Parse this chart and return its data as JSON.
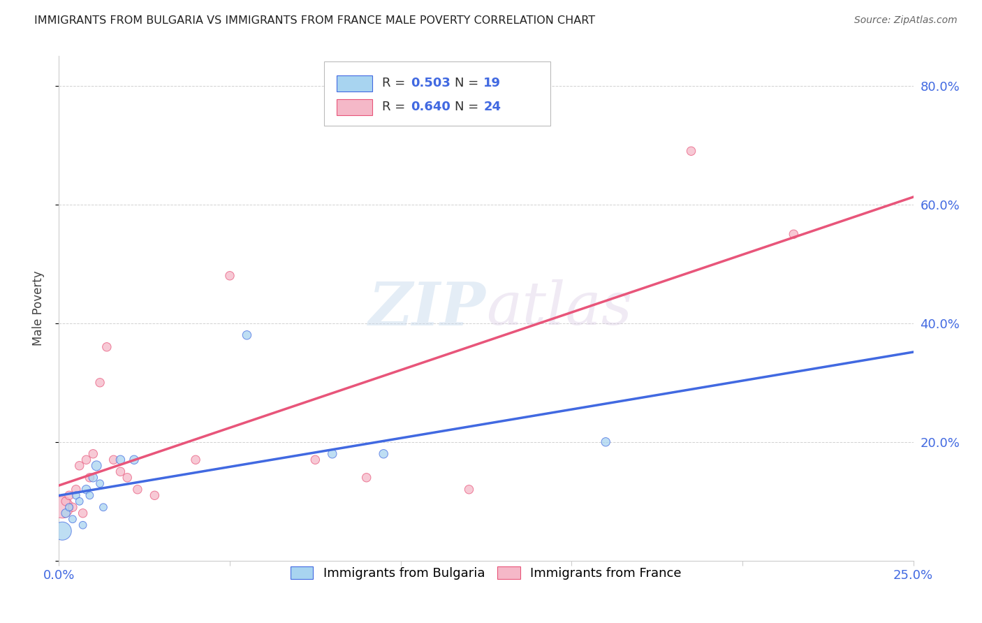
{
  "title": "IMMIGRANTS FROM BULGARIA VS IMMIGRANTS FROM FRANCE MALE POVERTY CORRELATION CHART",
  "source": "Source: ZipAtlas.com",
  "ylabel": "Male Poverty",
  "xlim": [
    0.0,
    0.25
  ],
  "ylim": [
    0.0,
    0.85
  ],
  "x_ticks": [
    0.0,
    0.05,
    0.1,
    0.15,
    0.2,
    0.25
  ],
  "x_tick_labels": [
    "0.0%",
    "",
    "",
    "",
    "",
    "25.0%"
  ],
  "y_ticks_right": [
    0.0,
    0.2,
    0.4,
    0.6,
    0.8
  ],
  "y_tick_labels_right": [
    "",
    "20.0%",
    "40.0%",
    "60.0%",
    "80.0%"
  ],
  "legend_label1": "Immigrants from Bulgaria",
  "legend_label2": "Immigrants from France",
  "R_bulgaria": "0.503",
  "N_bulgaria": "19",
  "R_france": "0.640",
  "N_france": "24",
  "color_bulgaria": "#a8d4f0",
  "color_france": "#f5b8c8",
  "line_bulgaria_color": "#4169E1",
  "line_france_color": "#e8557a",
  "watermark_zip": "ZIP",
  "watermark_atlas": "atlas",
  "bulgaria_x": [
    0.001,
    0.002,
    0.003,
    0.004,
    0.005,
    0.006,
    0.007,
    0.008,
    0.009,
    0.01,
    0.011,
    0.012,
    0.013,
    0.018,
    0.022,
    0.055,
    0.08,
    0.095,
    0.16
  ],
  "bulgaria_y": [
    0.05,
    0.08,
    0.09,
    0.07,
    0.11,
    0.1,
    0.06,
    0.12,
    0.11,
    0.14,
    0.16,
    0.13,
    0.09,
    0.17,
    0.17,
    0.38,
    0.18,
    0.18,
    0.2
  ],
  "bulgaria_size": [
    350,
    80,
    60,
    60,
    60,
    60,
    60,
    80,
    60,
    80,
    100,
    60,
    60,
    80,
    80,
    80,
    80,
    80,
    80
  ],
  "france_x": [
    0.001,
    0.002,
    0.003,
    0.004,
    0.005,
    0.006,
    0.007,
    0.008,
    0.009,
    0.01,
    0.012,
    0.014,
    0.016,
    0.018,
    0.02,
    0.023,
    0.028,
    0.04,
    0.05,
    0.075,
    0.09,
    0.12,
    0.185,
    0.215
  ],
  "france_y": [
    0.09,
    0.1,
    0.11,
    0.09,
    0.12,
    0.16,
    0.08,
    0.17,
    0.14,
    0.18,
    0.3,
    0.36,
    0.17,
    0.15,
    0.14,
    0.12,
    0.11,
    0.17,
    0.48,
    0.17,
    0.14,
    0.12,
    0.69,
    0.55
  ],
  "france_size": [
    500,
    80,
    80,
    80,
    80,
    80,
    80,
    80,
    80,
    80,
    80,
    80,
    80,
    80,
    80,
    80,
    80,
    80,
    80,
    80,
    80,
    80,
    80,
    80
  ]
}
